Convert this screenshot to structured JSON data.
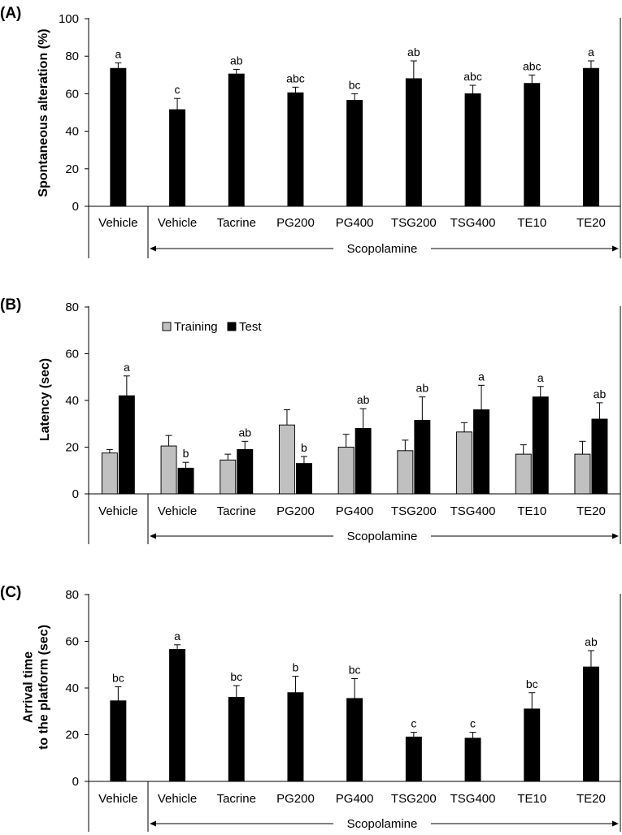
{
  "chart_data": [
    {
      "type": "bar",
      "panel": "(A)",
      "ylabel": "Spontaneous alteration (%)",
      "ylabel_lines": [
        "Spontaneous alteration (%)"
      ],
      "ylim": [
        0,
        100
      ],
      "yticks": [
        0,
        20,
        40,
        60,
        80,
        100
      ],
      "categories": [
        "Vehicle",
        "Vehicle",
        "Tacrine",
        "PG200",
        "PG400",
        "TSG200",
        "TSG400",
        "TE10",
        "TE20"
      ],
      "group_label": "Scopolamine",
      "series": [
        {
          "name": "Spontaneous alteration",
          "color": "#000000",
          "values": [
            73.5,
            51.5,
            70.5,
            60.5,
            56.5,
            68,
            60,
            65.5,
            73.5
          ],
          "errors": [
            3,
            6,
            2.5,
            3,
            3.5,
            9.5,
            4.5,
            4.5,
            4
          ],
          "labels": [
            "a",
            "c",
            "ab",
            "abc",
            "bc",
            "ab",
            "abc",
            "abc",
            "a"
          ]
        }
      ]
    },
    {
      "type": "bar",
      "panel": "(B)",
      "ylabel": "Latency (sec)",
      "ylabel_lines": [
        "Latency (sec)"
      ],
      "ylim": [
        0,
        80
      ],
      "yticks": [
        0,
        20,
        40,
        60,
        80
      ],
      "categories": [
        "Vehicle",
        "Vehicle",
        "Tacrine",
        "PG200",
        "PG400",
        "TSG200",
        "TSG400",
        "TE10",
        "TE20"
      ],
      "group_label": "Scopolamine",
      "legend": [
        "Training",
        "Test"
      ],
      "series": [
        {
          "name": "Training",
          "color": "#c0c0c0",
          "values": [
            17.5,
            20.5,
            14.5,
            29.5,
            20,
            18.5,
            26.5,
            17,
            17
          ],
          "errors": [
            1.5,
            4.5,
            2.5,
            6.5,
            5.5,
            4.5,
            4,
            4,
            5.5
          ],
          "labels": [
            "",
            "",
            "",
            "",
            "",
            "",
            "",
            "",
            ""
          ]
        },
        {
          "name": "Test",
          "color": "#000000",
          "values": [
            42,
            11,
            19,
            13,
            28,
            31.5,
            36,
            41.5,
            32
          ],
          "errors": [
            8.5,
            2.5,
            3.5,
            3,
            8.5,
            10,
            10.5,
            4.5,
            7
          ],
          "labels": [
            "a",
            "b",
            "ab",
            "b",
            "ab",
            "ab",
            "a",
            "a",
            "ab"
          ]
        }
      ]
    },
    {
      "type": "bar",
      "panel": "(C)",
      "ylabel": "Arrival time to the platform (sec)",
      "ylabel_lines": [
        "Arrival time",
        "to the platform (sec)"
      ],
      "ylim": [
        0,
        80
      ],
      "yticks": [
        0,
        20,
        40,
        60,
        80
      ],
      "categories": [
        "Vehicle",
        "Vehicle",
        "Tacrine",
        "PG200",
        "PG400",
        "TSG200",
        "TSG400",
        "TE10",
        "TE20"
      ],
      "group_label": "Scopolamine",
      "series": [
        {
          "name": "Arrival time",
          "color": "#000000",
          "values": [
            34.5,
            56.5,
            36,
            38,
            35.5,
            19,
            18.5,
            31,
            49
          ],
          "errors": [
            6,
            2,
            5,
            7,
            8.5,
            2,
            2.5,
            7,
            7
          ],
          "labels": [
            "bc",
            "a",
            "bc",
            "b",
            "bc",
            "c",
            "c",
            "bc",
            "ab"
          ]
        }
      ]
    }
  ]
}
